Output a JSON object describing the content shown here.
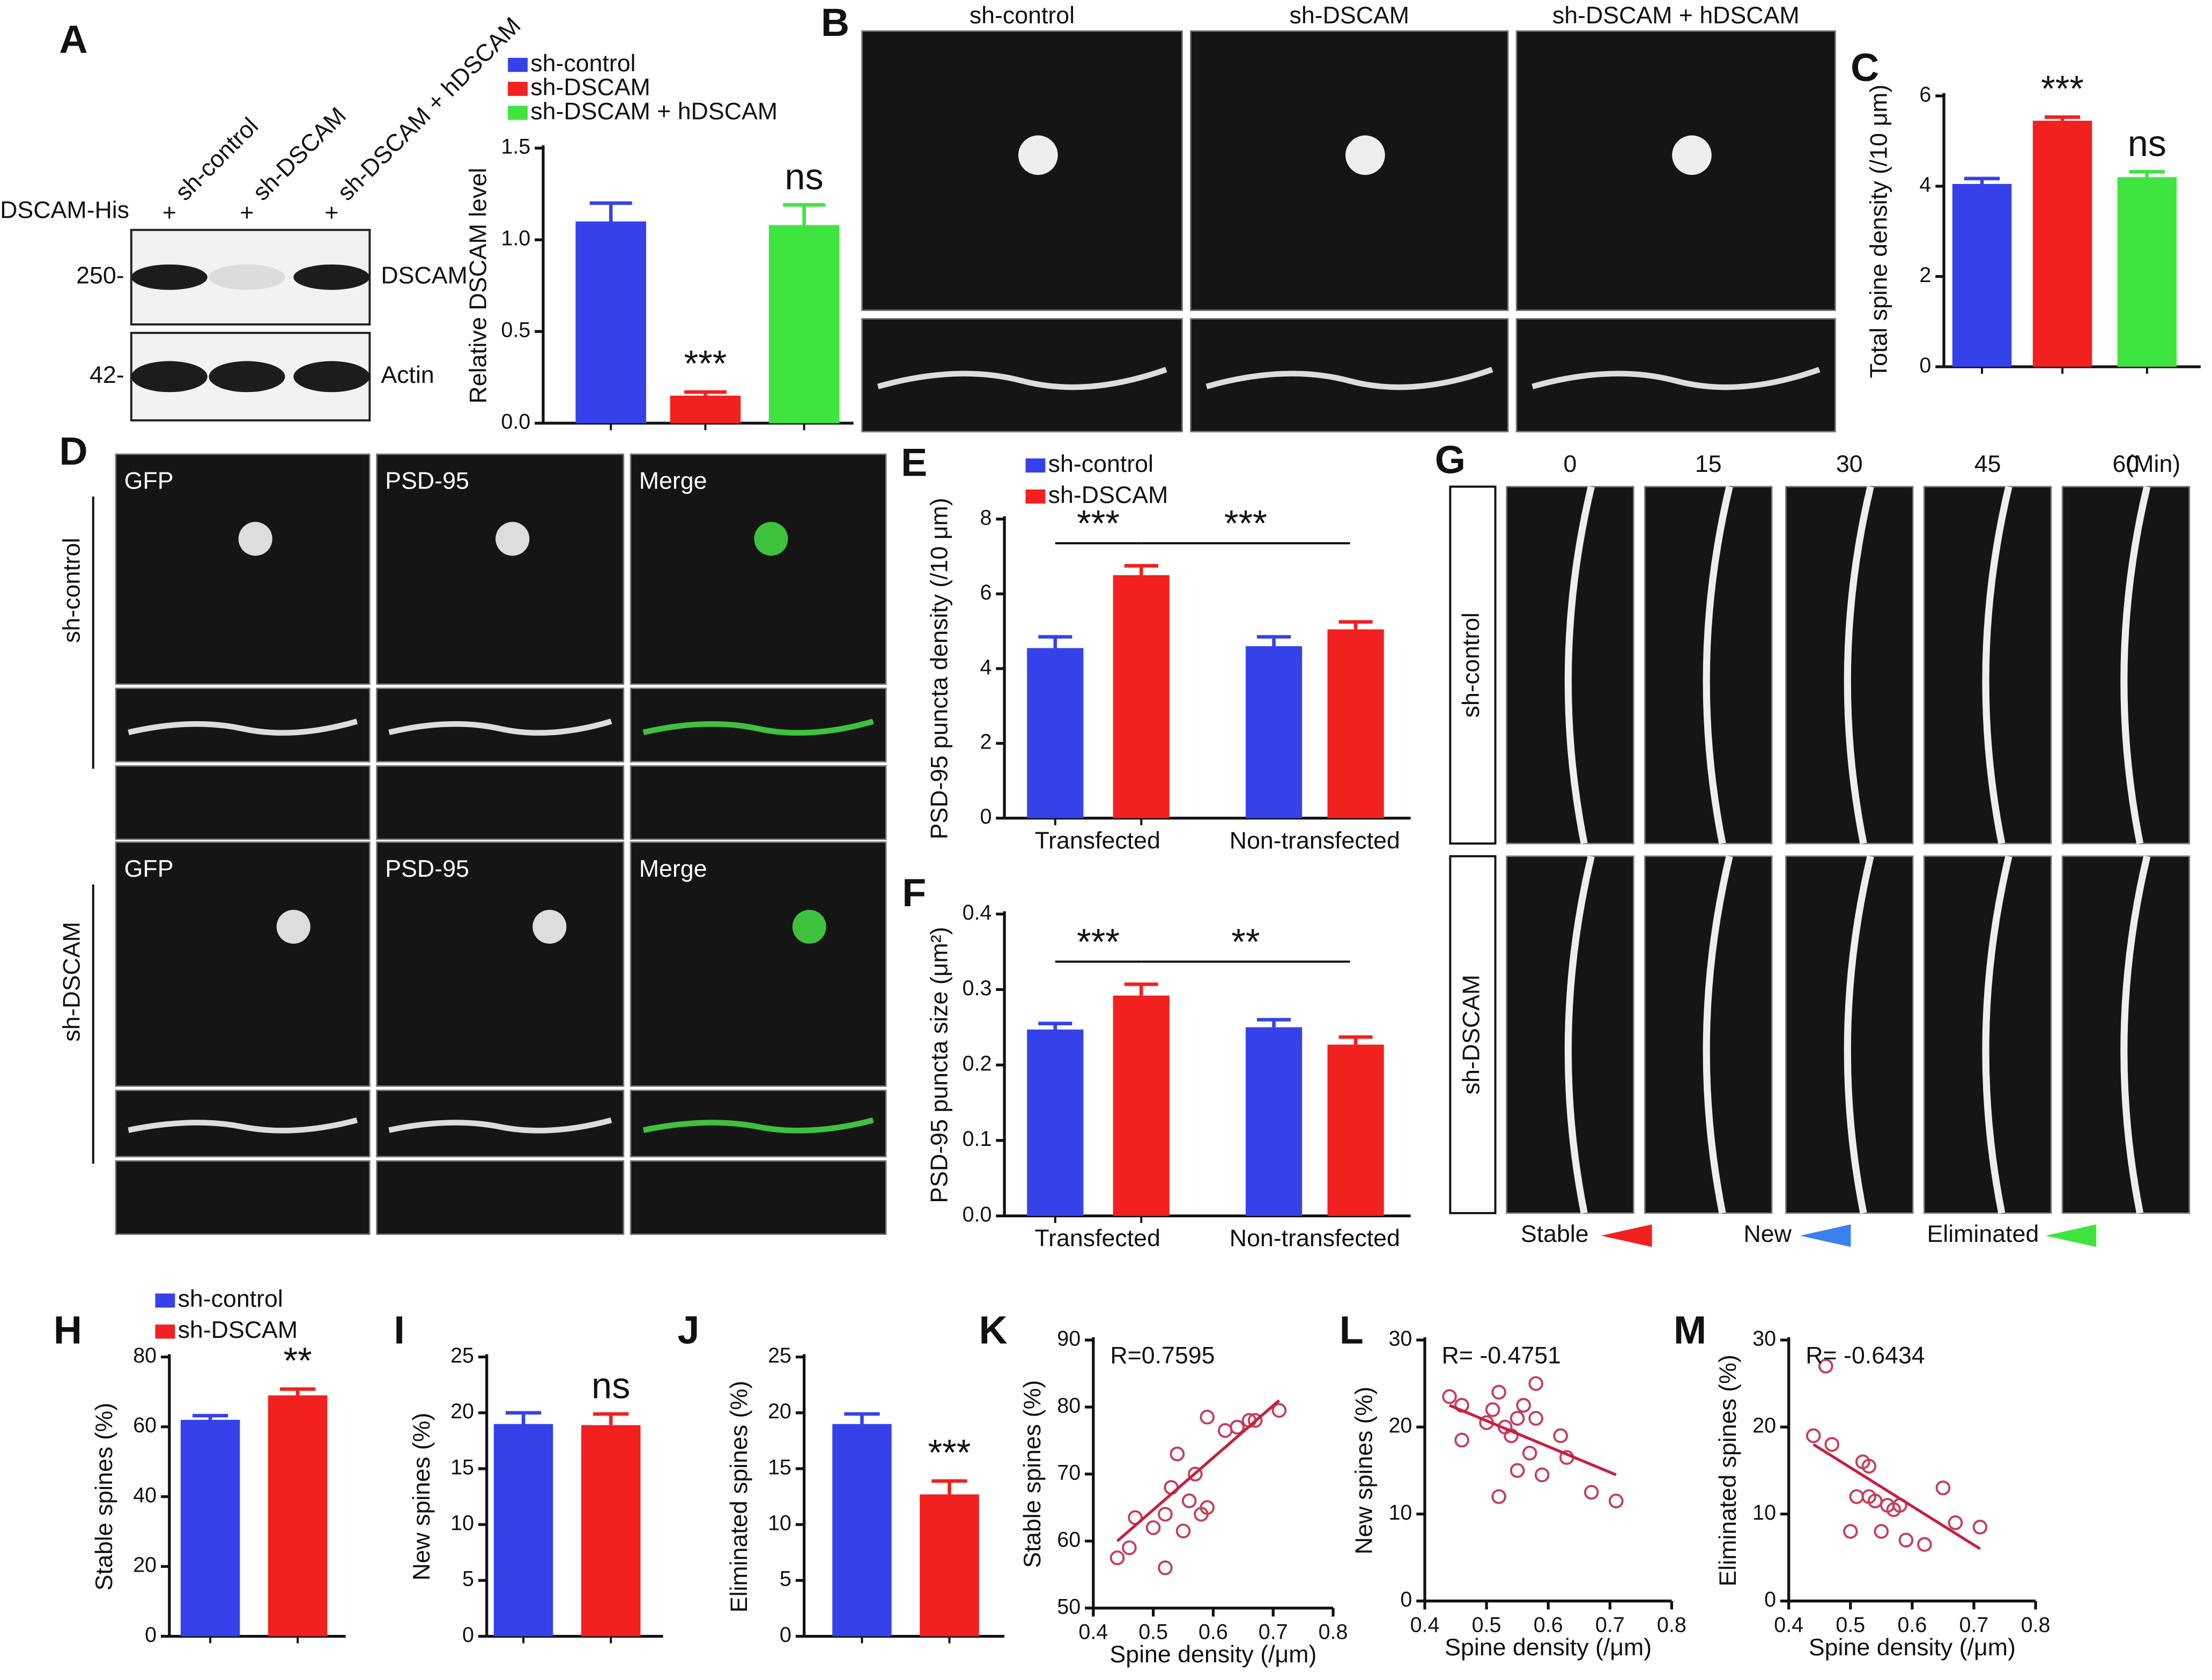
{
  "chart_data": [
    {
      "type": "bar",
      "ylabel": "Relative DSCAM level",
      "categories": [
        null
      ],
      "ylim": [
        0,
        1.5
      ],
      "yticks": [
        {
          "value": 0,
          "label": "0.0"
        },
        0.5,
        {
          "value": 1,
          "label": "1.0"
        },
        1.5
      ],
      "series": [
        {
          "name": "sh-control",
          "color": "#3542ea",
          "values": [
            1.1
          ],
          "errors": [
            0.1
          ]
        },
        {
          "name": "sh-DSCAM",
          "color": "#f2201e",
          "values": [
            0.15
          ],
          "errors": [
            0.02
          ],
          "annotation": "***"
        },
        {
          "name": "sh-DSCAM + hDSCAM",
          "color": "#3fe53f",
          "values": [
            1.08
          ],
          "errors": [
            0.11
          ],
          "annotation": "ns"
        }
      ]
    },
    {
      "type": "bar",
      "ylabel": "Total spine density (/10 μm)",
      "categories": [
        null
      ],
      "ylim": [
        0,
        6
      ],
      "yticks": [
        0,
        2,
        4,
        6
      ],
      "series": [
        {
          "color": "#3542ea",
          "values": [
            4.05
          ],
          "errors": [
            0.12
          ]
        },
        {
          "color": "#f2201e",
          "values": [
            5.45
          ],
          "errors": [
            0.08
          ],
          "annotation": "***"
        },
        {
          "color": "#3fe53f",
          "values": [
            4.2
          ],
          "errors": [
            0.12
          ],
          "annotation": "ns"
        }
      ]
    },
    {
      "type": "bar",
      "ylabel": "PSD-95 puncta density (/10 μm)",
      "categories": [
        "Transfected",
        "Non-transfected"
      ],
      "ylim": [
        0,
        8
      ],
      "yticks": [
        0,
        2,
        4,
        6,
        8
      ],
      "series": [
        {
          "name": "sh-control",
          "color": "#3542ea",
          "values": [
            4.55,
            4.6
          ],
          "errors": [
            0.3,
            0.25
          ]
        },
        {
          "name": "sh-DSCAM",
          "color": "#f2201e",
          "values": [
            6.5,
            5.05
          ],
          "errors": [
            0.25,
            0.2
          ]
        }
      ],
      "brackets": [
        "***",
        "***"
      ]
    },
    {
      "type": "bar",
      "ylabel": "PSD-95 puncta size (μm²)",
      "categories": [
        "Transfected",
        "Non-transfected"
      ],
      "ylim": [
        0,
        0.4
      ],
      "yticks": [
        {
          "value": 0,
          "label": "0.0"
        },
        0.1,
        0.2,
        0.3,
        0.4
      ],
      "series": [
        {
          "color": "#3542ea",
          "values": [
            0.247,
            0.25
          ],
          "errors": [
            0.008,
            0.01
          ]
        },
        {
          "color": "#f2201e",
          "values": [
            0.292,
            0.227
          ],
          "errors": [
            0.015,
            0.01
          ]
        }
      ],
      "brackets": [
        "***",
        "**"
      ]
    },
    {
      "type": "bar",
      "ylabel": "Stable spines (%)",
      "categories": [
        null
      ],
      "ylim": [
        0,
        80
      ],
      "yticks": [
        0,
        20,
        40,
        60,
        80
      ],
      "series": [
        {
          "name": "sh-control",
          "color": "#3542ea",
          "values": [
            62
          ],
          "errors": [
            1.2
          ]
        },
        {
          "name": "sh-DSCAM",
          "color": "#f2201e",
          "values": [
            69
          ],
          "errors": [
            1.8
          ],
          "annotation": "**"
        }
      ]
    },
    {
      "type": "bar",
      "ylabel": "New spines (%)",
      "categories": [
        null
      ],
      "ylim": [
        0,
        25
      ],
      "yticks": [
        0,
        5,
        10,
        15,
        20,
        25
      ],
      "series": [
        {
          "color": "#3542ea",
          "values": [
            19
          ],
          "errors": [
            1
          ]
        },
        {
          "color": "#f2201e",
          "values": [
            18.9
          ],
          "errors": [
            1
          ],
          "annotation": "ns"
        }
      ]
    },
    {
      "type": "bar",
      "ylabel": "Eliminated spines (%)",
      "categories": [
        null
      ],
      "ylim": [
        0,
        25
      ],
      "yticks": [
        0,
        5,
        10,
        15,
        20,
        25
      ],
      "series": [
        {
          "color": "#3542ea",
          "values": [
            19
          ],
          "errors": [
            0.9
          ]
        },
        {
          "color": "#f2201e",
          "values": [
            12.7
          ],
          "errors": [
            1.2
          ],
          "annotation": "***"
        }
      ]
    },
    {
      "type": "scatter",
      "ylabel": "Stable spines (%)",
      "xlabel": "Spine density (/μm)",
      "annotation": "R=0.7595",
      "color": "#c2405c",
      "x": [
        0.44,
        0.46,
        0.47,
        0.5,
        0.52,
        0.52,
        0.53,
        0.54,
        0.55,
        0.56,
        0.57,
        0.58,
        0.59,
        0.59,
        0.62,
        0.64,
        0.66,
        0.67,
        0.71
      ],
      "values": [
        57.5,
        59,
        63.5,
        62,
        56,
        64,
        68,
        73,
        61.5,
        66,
        70,
        64,
        65,
        78.5,
        76.5,
        77,
        78,
        78,
        79.5
      ],
      "fit": {
        "x": [
          0.44,
          0.71
        ],
        "y": [
          60,
          81
        ]
      },
      "xlim": [
        0.4,
        0.8
      ],
      "xticks": [
        0.4,
        0.5,
        0.6,
        0.7,
        0.8
      ],
      "ylim": [
        50,
        90
      ],
      "yticks": [
        50,
        60,
        70,
        80,
        90
      ]
    },
    {
      "type": "scatter",
      "ylabel": "New spines (%)",
      "xlabel": "Spine density (/μm)",
      "annotation": "R= -0.4751",
      "color": "#c2405c",
      "x": [
        0.44,
        0.46,
        0.46,
        0.5,
        0.51,
        0.52,
        0.52,
        0.53,
        0.54,
        0.55,
        0.55,
        0.56,
        0.57,
        0.58,
        0.58,
        0.59,
        0.62,
        0.63,
        0.67,
        0.71
      ],
      "values": [
        23.5,
        22.5,
        18.5,
        20.5,
        22,
        24,
        12,
        20,
        19,
        21,
        15,
        22.5,
        17,
        21,
        25,
        14.5,
        19,
        16.5,
        12.5,
        11.5
      ],
      "fit": {
        "x": [
          0.44,
          0.71
        ],
        "y": [
          22.5,
          14.5
        ]
      },
      "xlim": [
        0.4,
        0.8
      ],
      "xticks": [
        0.4,
        0.5,
        0.6,
        0.7,
        0.8
      ],
      "ylim": [
        0,
        30
      ],
      "yticks": [
        0,
        10,
        20,
        30
      ]
    },
    {
      "type": "scatter",
      "ylabel": "Eliminated spines (%)",
      "xlabel": "Spine density (/μm)",
      "annotation": "R= -0.6434",
      "color": "#c2405c",
      "x": [
        0.44,
        0.46,
        0.47,
        0.5,
        0.51,
        0.52,
        0.53,
        0.53,
        0.54,
        0.55,
        0.56,
        0.57,
        0.58,
        0.59,
        0.62,
        0.65,
        0.67,
        0.71
      ],
      "values": [
        19,
        27,
        18,
        8,
        12,
        16,
        12,
        15.5,
        11.5,
        8,
        11,
        10.5,
        11,
        7,
        6.5,
        13,
        9,
        8.5
      ],
      "fit": {
        "x": [
          0.44,
          0.71
        ],
        "y": [
          18,
          6
        ]
      },
      "xlim": [
        0.4,
        0.8
      ],
      "xticks": [
        0.4,
        0.5,
        0.6,
        0.7,
        0.8
      ],
      "ylim": [
        0,
        30
      ],
      "yticks": [
        0,
        10,
        20,
        30
      ]
    }
  ],
  "figure": {
    "panel_labels": [
      "A",
      "B",
      "C",
      "D",
      "E",
      "F",
      "G",
      "H",
      "I",
      "J",
      "K",
      "L",
      "M"
    ],
    "blot": {
      "lanes": [
        "sh-control",
        "sh-DSCAM",
        "sh-DSCAM + hDSCAM"
      ],
      "row_label": "DSCAM-His",
      "plus": [
        "+",
        "+",
        "+"
      ],
      "markers": [
        "250-",
        "42-"
      ],
      "bands": [
        "DSCAM",
        "Actin"
      ]
    },
    "B": {
      "columns": [
        "sh-control",
        "sh-DSCAM",
        "sh-DSCAM + hDSCAM"
      ]
    },
    "D": {
      "channels": [
        "GFP",
        "PSD-95",
        "Merge"
      ],
      "rows": [
        "sh-control",
        "sh-DSCAM"
      ]
    },
    "G": {
      "times": [
        "0",
        "15",
        "30",
        "45",
        "60"
      ],
      "unit": "(Min)",
      "rows": [
        "sh-control",
        "sh-DSCAM"
      ],
      "legend": [
        "Stable",
        "New",
        "Eliminated"
      ]
    }
  }
}
